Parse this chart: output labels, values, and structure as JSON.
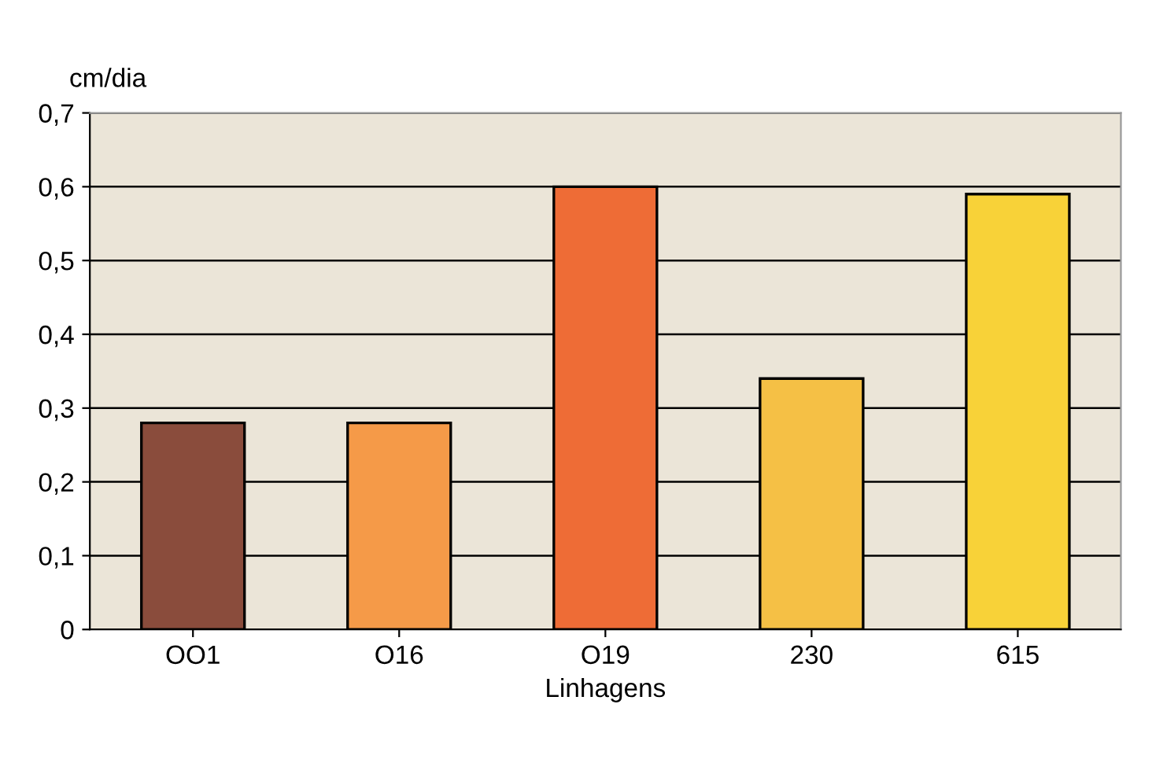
{
  "chart_data": {
    "type": "bar",
    "ylabel": "cm/dia",
    "xlabel": "Linhagens",
    "categories": [
      "OO1",
      "O16",
      "O19",
      "230",
      "615"
    ],
    "values": [
      0.28,
      0.28,
      0.6,
      0.34,
      0.59
    ],
    "colors": [
      "#8a4c3c",
      "#f59a48",
      "#ee6c36",
      "#f5c045",
      "#f8d238"
    ],
    "ylim": [
      0,
      0.7
    ],
    "yticks": [
      0,
      {
        "value": 0.1,
        "label": "0,1"
      },
      {
        "value": 0.2,
        "label": "0,2"
      },
      {
        "value": 0.3,
        "label": "0,3"
      },
      {
        "value": 0.4,
        "label": "0,4"
      },
      {
        "value": 0.5,
        "label": "0,5"
      },
      {
        "value": 0.6,
        "label": "0,6"
      },
      {
        "value": 0.7,
        "label": "0,7"
      }
    ],
    "grid": "y",
    "legend": false
  }
}
